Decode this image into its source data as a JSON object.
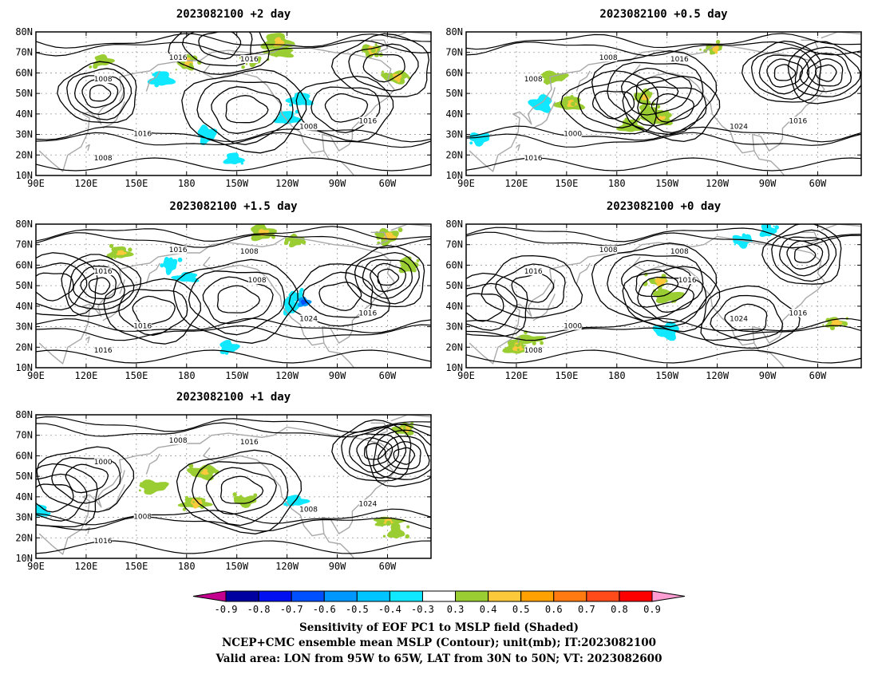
{
  "colors": {
    "coast": "#a8a8a8",
    "contour": "#000000",
    "grid": "#9a9a9a",
    "positive": [
      "#9acd32",
      "#fbc93a",
      "#ffa100",
      "#ff7a10",
      "#ff4a1a",
      "#ff0000"
    ],
    "negative": [
      "#10e8ff",
      "#00c4ff",
      "#0098ff",
      "#0050ff",
      "#0010f0",
      "#0000a0"
    ],
    "extend_low": "#c4008f",
    "extend_high": "#ff9ed2"
  },
  "lat_ticks": [
    "80N",
    "70N",
    "60N",
    "50N",
    "40N",
    "30N",
    "20N",
    "10N"
  ],
  "lon_ticks": [
    "90E",
    "120E",
    "150E",
    "180",
    "150W",
    "120W",
    "90W",
    "60W"
  ],
  "panels": [
    {
      "title": "2023082100 +2 day",
      "contour_labels": [
        "1016",
        "1016",
        "1008",
        "1016",
        "1008",
        "1016",
        "1008"
      ],
      "highs": [
        {
          "lon": 215,
          "lat": 42
        },
        {
          "lon": 275,
          "lat": 43
        },
        {
          "lon": 298,
          "lat": 63
        },
        {
          "lon": 200,
          "lat": 74
        }
      ],
      "lows": [
        {
          "lon": 128,
          "lat": 50
        }
      ],
      "pos_patches": [
        {
          "lon": 234,
          "lat": 75
        },
        {
          "lon": 236,
          "lat": 70
        },
        {
          "lon": 290,
          "lat": 71
        },
        {
          "lon": 130,
          "lat": 66
        },
        {
          "lon": 180,
          "lat": 65
        },
        {
          "lon": 220,
          "lat": 66
        },
        {
          "lon": 305,
          "lat": 58
        }
      ],
      "neg_patches": [
        {
          "lon": 208,
          "lat": 18
        },
        {
          "lon": 248,
          "lat": 47
        },
        {
          "lon": 165,
          "lat": 57
        },
        {
          "lon": 192,
          "lat": 30
        },
        {
          "lon": 240,
          "lat": 38
        }
      ]
    },
    {
      "title": "2023082100 +0.5 day",
      "contour_labels": [
        "1008",
        "1016",
        "1008",
        "1000",
        "1024",
        "1016",
        "1016"
      ],
      "highs": [
        {
          "lon": 203,
          "lat": 51
        },
        {
          "lon": 213,
          "lat": 43
        },
        {
          "lon": 178,
          "lat": 45
        }
      ],
      "lows": [
        {
          "lon": 280,
          "lat": 60
        },
        {
          "lon": 305,
          "lat": 60
        }
      ],
      "pos_patches": [
        {
          "lon": 196,
          "lat": 48
        },
        {
          "lon": 188,
          "lat": 34
        },
        {
          "lon": 205,
          "lat": 38
        },
        {
          "lon": 198,
          "lat": 42
        },
        {
          "lon": 152,
          "lat": 45
        },
        {
          "lon": 142,
          "lat": 58
        },
        {
          "lon": 238,
          "lat": 72
        }
      ],
      "neg_patches": [
        {
          "lon": 135,
          "lat": 45
        },
        {
          "lon": 98,
          "lat": 28
        }
      ]
    },
    {
      "title": "2023082100 +1.5 day",
      "contour_labels": [
        "1016",
        "1008",
        "1016",
        "1016",
        "1024",
        "1016",
        "1016",
        "1008"
      ],
      "highs": [
        {
          "lon": 210,
          "lat": 43
        },
        {
          "lon": 160,
          "lat": 38
        },
        {
          "lon": 100,
          "lat": 50
        },
        {
          "lon": 272,
          "lat": 45
        }
      ],
      "lows": [
        {
          "lon": 300,
          "lat": 54
        },
        {
          "lon": 128,
          "lat": 50
        }
      ],
      "pos_patches": [
        {
          "lon": 300,
          "lat": 74
        },
        {
          "lon": 312,
          "lat": 60
        },
        {
          "lon": 225,
          "lat": 76
        },
        {
          "lon": 245,
          "lat": 72
        },
        {
          "lon": 140,
          "lat": 66
        }
      ],
      "neg_patches": [
        {
          "lon": 205,
          "lat": 20
        },
        {
          "lon": 245,
          "lat": 45
        },
        {
          "lon": 242,
          "lat": 40
        },
        {
          "lon": 180,
          "lat": 54
        },
        {
          "lon": 170,
          "lat": 60
        }
      ],
      "dark_neg": [
        {
          "lon": 250,
          "lat": 42
        }
      ]
    },
    {
      "title": "2023082100 +0 day",
      "contour_labels": [
        "1008",
        "1008",
        "1016",
        "1000",
        "1024",
        "1016",
        "1008",
        "1016"
      ],
      "highs": [
        {
          "lon": 203,
          "lat": 51
        },
        {
          "lon": 213,
          "lat": 44
        },
        {
          "lon": 100,
          "lat": 40
        },
        {
          "lon": 130,
          "lat": 49
        },
        {
          "lon": 258,
          "lat": 34
        }
      ],
      "lows": [
        {
          "lon": 292,
          "lat": 65
        }
      ],
      "pos_patches": [
        {
          "lon": 120,
          "lat": 20
        },
        {
          "lon": 128,
          "lat": 24
        },
        {
          "lon": 205,
          "lat": 52
        },
        {
          "lon": 210,
          "lat": 45
        },
        {
          "lon": 310,
          "lat": 32
        }
      ],
      "neg_patches": [
        {
          "lon": 270,
          "lat": 77
        },
        {
          "lon": 255,
          "lat": 72
        },
        {
          "lon": 210,
          "lat": 28
        }
      ]
    },
    {
      "title": "2023082100 +1 day",
      "contour_labels": [
        "1008",
        "1016",
        "1000",
        "1008",
        "1008",
        "1024",
        "1016"
      ],
      "highs": [
        {
          "lon": 212,
          "lat": 43
        },
        {
          "lon": 120,
          "lat": 49
        },
        {
          "lon": 100,
          "lat": 40
        }
      ],
      "lows": [
        {
          "lon": 292,
          "lat": 62
        },
        {
          "lon": 310,
          "lat": 60
        }
      ],
      "pos_patches": [
        {
          "lon": 190,
          "lat": 52
        },
        {
          "lon": 215,
          "lat": 38
        },
        {
          "lon": 185,
          "lat": 37
        },
        {
          "lon": 160,
          "lat": 45
        },
        {
          "lon": 300,
          "lat": 28
        },
        {
          "lon": 305,
          "lat": 23
        },
        {
          "lon": 310,
          "lat": 73
        }
      ],
      "neg_patches": [
        {
          "lon": 92,
          "lat": 33
        },
        {
          "lon": 245,
          "lat": 38
        }
      ]
    }
  ],
  "colorbar": {
    "labels": [
      "-0.9",
      "-0.8",
      "-0.7",
      "-0.6",
      "-0.5",
      "-0.4",
      "-0.3",
      "0.3",
      "0.4",
      "0.5",
      "0.6",
      "0.7",
      "0.8",
      "0.9"
    ]
  },
  "footer": {
    "line1": "Sensitivity of EOF PC1 to MSLP field (Shaded)",
    "line2": "NCEP+CMC ensemble mean MSLP (Contour); unit(mb); IT:2023082100",
    "line3": "Valid area: LON from 95W to 65W, LAT from 30N to 50N; VT: 2023082600"
  }
}
